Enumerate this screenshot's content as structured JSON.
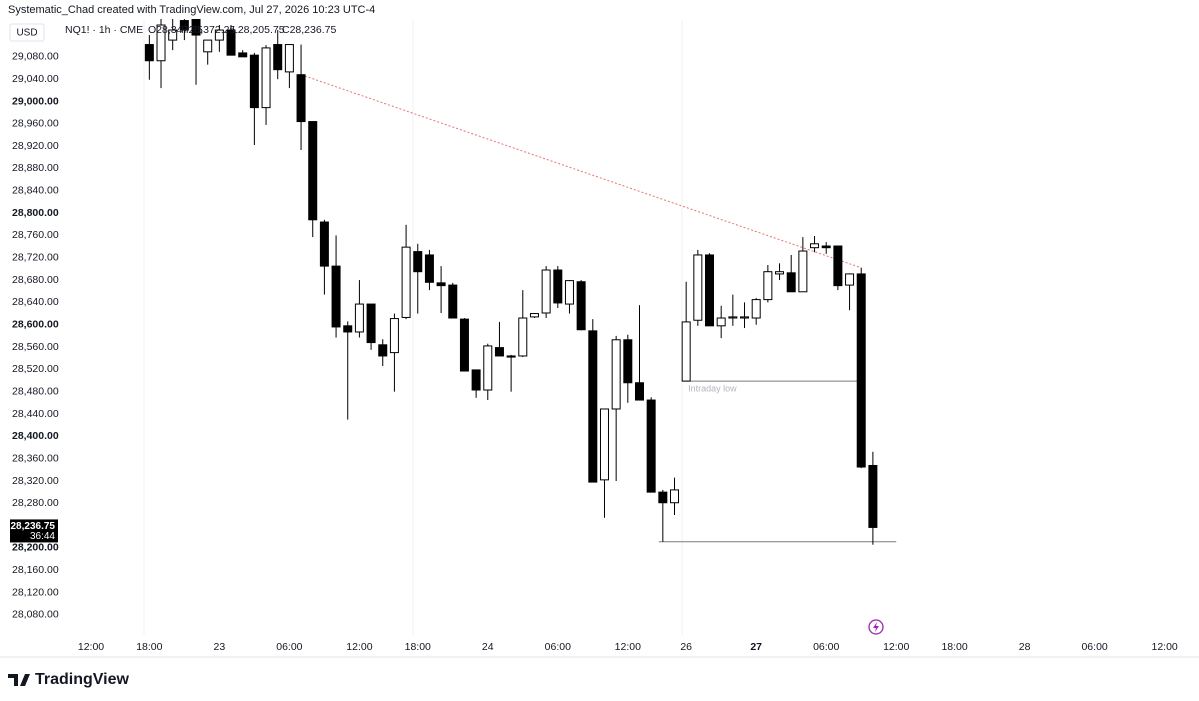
{
  "chart_data": {
    "type": "candlestick",
    "title": "Systematic_Chad created with TradingView.com, Jul 27, 2026 10:23 UTC-4",
    "currency": "USD",
    "legend": {
      "symbol": "NQ1! · 1h · CME",
      "open": "O28,347.75",
      "high": "H28,372.25",
      "low": "L28,205.75",
      "close": "C28,236.75"
    },
    "price_label": "28,236.75",
    "countdown": "36:44",
    "footer": "TradingView",
    "categories": [
      "12:00",
      null,
      null,
      null,
      null,
      "18:00",
      null,
      null,
      null,
      null,
      null,
      "23",
      null,
      null,
      null,
      null,
      null,
      "06:00",
      null,
      null,
      null,
      null,
      null,
      "12:00",
      null,
      null,
      null,
      null,
      "18:00",
      null,
      null,
      null,
      null,
      null,
      "24",
      null,
      null,
      null,
      null,
      null,
      "06:00",
      null,
      null,
      null,
      null,
      null,
      "12:00",
      null,
      null,
      null,
      null,
      "26",
      null,
      null,
      null,
      null,
      null,
      "27",
      null,
      null,
      null,
      null,
      null,
      "06:00",
      null,
      null,
      null,
      null,
      null,
      "12:00",
      null,
      null,
      null,
      null,
      "18:00",
      null,
      null,
      null,
      null,
      null,
      "28",
      null,
      null,
      null,
      null,
      null,
      "06:00",
      null,
      null,
      null,
      null,
      null,
      "12:00"
    ],
    "open": [
      null,
      null,
      null,
      null,
      null,
      29102,
      29073,
      29110,
      29145,
      29150,
      29089,
      29110,
      29128,
      29087,
      29083,
      28989,
      29102,
      29053,
      29048,
      28964,
      28784,
      28705,
      28598,
      28587,
      28637,
      28564,
      28550,
      28613,
      28731,
      28725,
      28675,
      28671,
      28610,
      28519,
      28483,
      28559,
      28544,
      28544,
      28614,
      28621,
      28698,
      28637,
      28677,
      28589,
      28322,
      28449,
      28573,
      28496,
      28465,
      28300,
      28281,
      28499,
      28608,
      28725,
      28598,
      28612,
      28612,
      28612,
      28645,
      28691,
      28693,
      28659,
      28738,
      28741,
      28741,
      28671,
      28691,
      28347.75,
      null,
      null,
      null,
      null,
      null,
      null,
      null,
      null,
      null,
      null,
      null,
      null,
      null,
      null,
      null,
      null,
      null,
      null,
      null,
      null,
      null,
      null,
      null,
      null,
      null
    ],
    "high": [
      null,
      null,
      null,
      null,
      null,
      29119,
      29150,
      29150,
      29155,
      29155,
      29110,
      29137,
      29137,
      29092,
      29087,
      29101,
      29128,
      29102,
      29102,
      28964,
      28788,
      28760,
      28606,
      28680,
      28637,
      28574,
      28620,
      28779,
      28745,
      28734,
      28705,
      28675,
      28612,
      28519,
      28566,
      28605,
      28546,
      28662,
      28621,
      28705,
      28705,
      28680,
      28680,
      28610,
      28449,
      28580,
      28582,
      28635,
      28470,
      28304,
      28326,
      28677,
      28734,
      28728,
      28634,
      28654,
      28640,
      28648,
      28707,
      28710,
      28725,
      28757,
      28759,
      28748,
      28741,
      28692,
      28702,
      28372.25,
      null,
      null,
      null,
      null,
      null,
      null,
      null,
      null,
      null,
      null,
      null,
      null,
      null,
      null,
      null,
      null,
      null,
      null,
      null,
      null,
      null,
      null,
      null,
      null,
      null
    ],
    "low": [
      null,
      null,
      null,
      null,
      null,
      29039,
      29024,
      29092,
      29110,
      29030,
      29066,
      29089,
      29083,
      29080,
      28922,
      28958,
      29040,
      29024,
      28913,
      28757,
      28654,
      28577,
      28430,
      28577,
      28555,
      28526,
      28480,
      28610,
      28620,
      28662,
      28621,
      28612,
      28517,
      28469,
      28465,
      28544,
      28480,
      28542,
      28612,
      28612,
      28630,
      28620,
      28590,
      28318,
      28254,
      28320,
      28460,
      28465,
      28300,
      28211,
      28259,
      28499,
      28598,
      28598,
      28576,
      28598,
      28594,
      28600,
      28640,
      28680,
      28659,
      28659,
      28730,
      28727,
      28662,
      28626,
      28343,
      28205.75,
      null,
      null,
      null,
      null,
      null,
      null,
      null,
      null,
      null,
      null,
      null,
      null,
      null,
      null,
      null,
      null,
      null,
      null,
      null,
      null,
      null,
      null,
      null,
      null,
      null
    ],
    "close": [
      null,
      null,
      null,
      null,
      null,
      29073,
      29137,
      29128,
      29128,
      29119,
      29110,
      29128,
      29083,
      29080,
      28989,
      29096,
      29057,
      29102,
      28964,
      28788,
      28705,
      28596,
      28587,
      28637,
      28568,
      28544,
      28611,
      28739,
      28695,
      28676,
      28670,
      28612,
      28517,
      28483,
      28562,
      28544,
      28542,
      28612,
      28620,
      28698,
      28639,
      28679,
      28591,
      28318,
      28449,
      28573,
      28496,
      28465,
      28300,
      28281,
      28304,
      28605,
      28725,
      28598,
      28612,
      28614,
      28614,
      28645,
      28695,
      28695,
      28659,
      28732,
      28745,
      28738,
      28670,
      28691,
      28345,
      28236.75,
      null,
      null,
      null,
      null,
      null,
      null,
      null,
      null,
      null,
      null,
      null,
      null,
      null,
      null,
      null,
      null,
      null,
      null,
      null,
      null,
      null,
      null,
      null,
      null,
      null
    ],
    "up_color": "#ffffff",
    "down_color": "#000000",
    "ylim": [
      28044,
      29146
    ],
    "yticks": [
      {
        "value": 29080,
        "label": "29,080.00"
      },
      {
        "value": 29040,
        "label": "29,040.00"
      },
      {
        "value": 29000,
        "label": "29,000.00"
      },
      {
        "value": 28960,
        "label": "28,960.00"
      },
      {
        "value": 28920,
        "label": "28,920.00"
      },
      {
        "value": 28880,
        "label": "28,880.00"
      },
      {
        "value": 28840,
        "label": "28,840.00"
      },
      {
        "value": 28800,
        "label": "28,800.00"
      },
      {
        "value": 28760,
        "label": "28,760.00"
      },
      {
        "value": 28720,
        "label": "28,720.00"
      },
      {
        "value": 28680,
        "label": "28,680.00"
      },
      {
        "value": 28640,
        "label": "28,640.00"
      },
      {
        "value": 28600,
        "label": "28,600.00"
      },
      {
        "value": 28560,
        "label": "28,560.00"
      },
      {
        "value": 28520,
        "label": "28,520.00"
      },
      {
        "value": 28480,
        "label": "28,480.00"
      },
      {
        "value": 28440,
        "label": "28,440.00"
      },
      {
        "value": 28400,
        "label": "28,400.00"
      },
      {
        "value": 28360,
        "label": "28,360.00"
      },
      {
        "value": 28320,
        "label": "28,320.00"
      },
      {
        "value": 28280,
        "label": "28,280.00"
      },
      {
        "value": 28200,
        "label": "28,200.00"
      },
      {
        "value": 28160,
        "label": "28,160.00"
      },
      {
        "value": 28120,
        "label": "28,120.00"
      },
      {
        "value": 28080,
        "label": "28,080.00"
      }
    ],
    "hlines": [
      {
        "value": 28499,
        "from": 51,
        "to": 66,
        "label": "Intraday low"
      },
      {
        "value": 28211,
        "from": 49,
        "to": 69
      }
    ],
    "trendline": {
      "x": [
        18,
        66
      ],
      "y": [
        29048,
        28702
      ],
      "color": "#e57373"
    }
  }
}
